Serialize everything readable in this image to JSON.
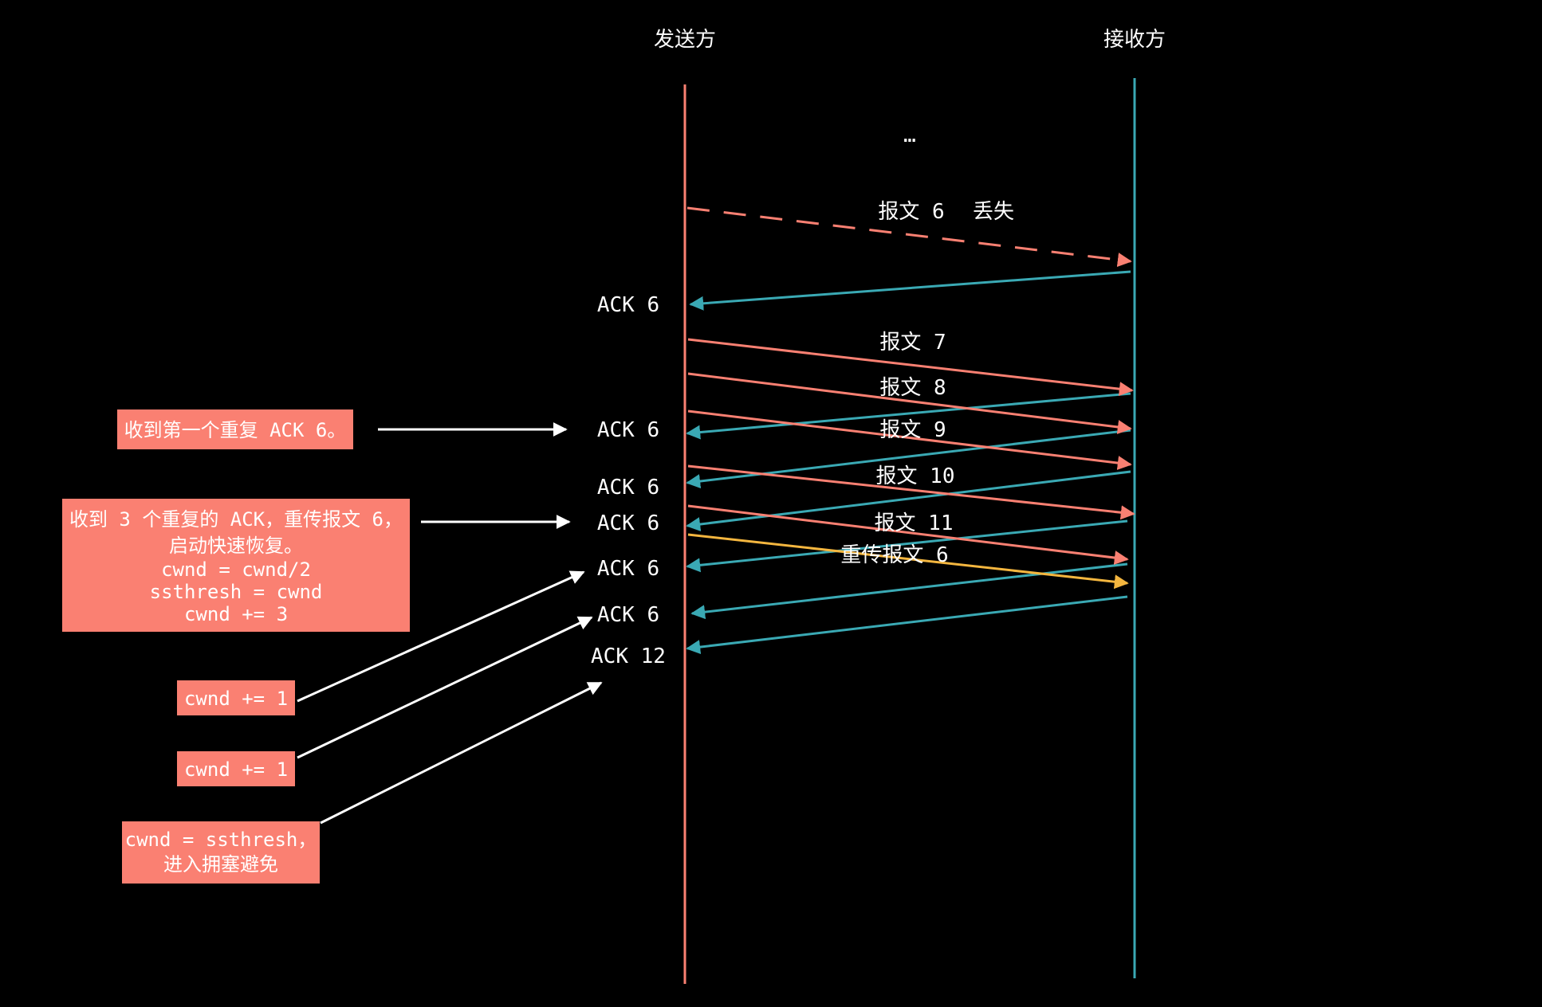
{
  "colors": {
    "background": "#000000",
    "sender": "#fa8072",
    "receiver": "#3aa9b4",
    "retransmit": "#f4b63f",
    "annotation_arrow": "#ffffff",
    "note_box": "#fa8072"
  },
  "lanes": {
    "sender": "发送方",
    "receiver": "接收方"
  },
  "ellipsis": "…",
  "packets": {
    "p6": "报文 6",
    "p6_lost": "丢失",
    "p7": "报文 7",
    "p8": "报文 8",
    "p9": "报文 9",
    "p10": "报文 10",
    "p11": "报文 11",
    "p6_retransmit": "重传报文 6"
  },
  "acks": {
    "a1": "ACK 6",
    "a2": "ACK 6",
    "a3": "ACK 6",
    "a4": "ACK 6",
    "a5": "ACK 6",
    "a6": "ACK 6",
    "a7": "ACK 12"
  },
  "notes": {
    "first_dup": "收到第一个重复 ACK 6。",
    "third_dup": [
      "收到 3 个重复的 ACK，重传报文 6，",
      "启动快速恢复。",
      "cwnd = cwnd/2",
      "ssthresh = cwnd",
      "cwnd += 3"
    ],
    "inc1": "cwnd += 1",
    "inc2": "cwnd += 1",
    "exit": [
      "cwnd = ssthresh，",
      "进入拥塞避免"
    ]
  }
}
